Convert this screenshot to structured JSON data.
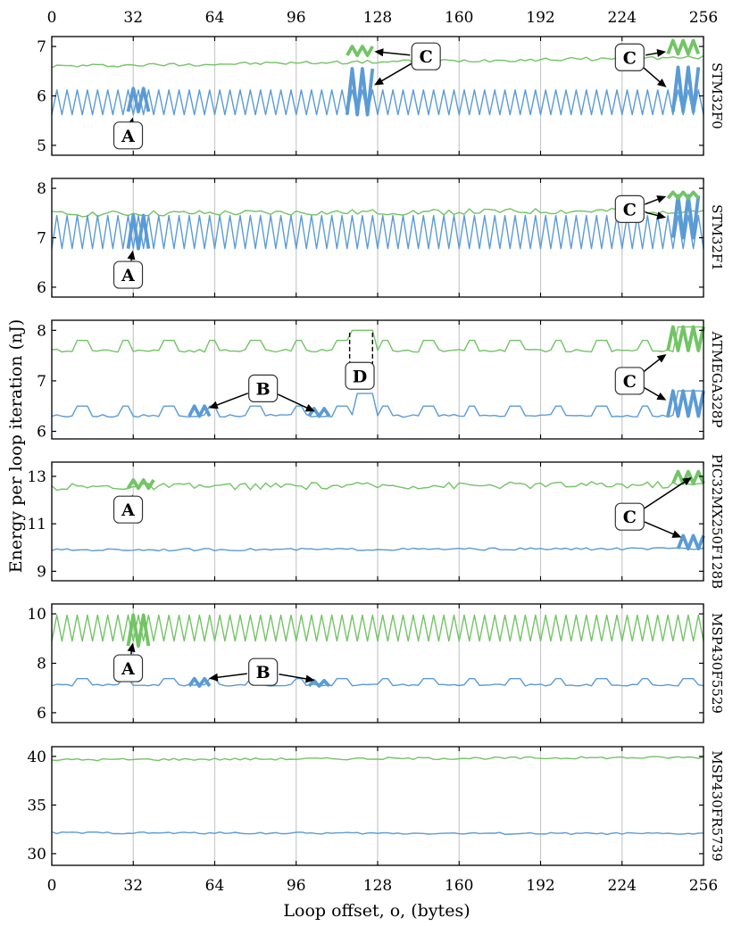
{
  "chart_data": {
    "type": "line",
    "xlabel": "Loop offset, o, (bytes)",
    "ylabel": "Energy per loop iteration (nJ)",
    "xlim": [
      0,
      256
    ],
    "x_ticks": [
      "0",
      "32",
      "64",
      "96",
      "128",
      "160",
      "192",
      "224",
      "256"
    ],
    "grid": "vertical",
    "series_colors": {
      "green": "#72c464",
      "blue": "#5b9bd5"
    },
    "panels": [
      {
        "name": "STM32F0",
        "ylim": [
          4.8,
          7.2
        ],
        "yticks": [
          5,
          6,
          7
        ],
        "green": {
          "kind": "jitter",
          "base_start": 6.6,
          "base_end": 6.78,
          "amp": 0.035
        },
        "blue": {
          "kind": "zigzag",
          "low": 5.62,
          "high": 6.12
        },
        "highlights": [
          {
            "series": "blue",
            "x_from": 30,
            "x_to": 39,
            "low": 5.68,
            "high": 6.15
          },
          {
            "series": "blue",
            "x_from": 116,
            "x_to": 126,
            "low": 5.62,
            "high": 6.55
          },
          {
            "series": "green",
            "x_from": 116,
            "x_to": 126,
            "low": 6.82,
            "high": 7.0
          },
          {
            "series": "blue",
            "x_from": 244,
            "x_to": 255,
            "low": 5.68,
            "high": 6.58
          },
          {
            "series": "green",
            "x_from": 242,
            "x_to": 255,
            "low": 6.85,
            "high": 7.12
          }
        ],
        "annotations": [
          {
            "label": "A",
            "x": 30,
            "y": 5.2,
            "points": [
              [
                32,
                5.6
              ]
            ]
          },
          {
            "label": "C",
            "x": 147,
            "y": 6.8,
            "points": [
              [
                126,
                6.9
              ],
              [
                126,
                6.2
              ]
            ]
          },
          {
            "label": "C",
            "x": 227,
            "y": 6.78,
            "points": [
              [
                242,
                6.9
              ],
              [
                242,
                6.15
              ]
            ]
          }
        ]
      },
      {
        "name": "STM32F1",
        "ylim": [
          5.8,
          8.2
        ],
        "yticks": [
          6,
          7,
          8
        ],
        "green": {
          "kind": "jitter",
          "base_start": 7.48,
          "base_end": 7.55,
          "amp": 0.06
        },
        "blue": {
          "kind": "zigzag",
          "low": 6.78,
          "high": 7.45
        },
        "highlights": [
          {
            "series": "blue",
            "x_from": 30,
            "x_to": 39,
            "low": 6.78,
            "high": 7.45
          },
          {
            "series": "blue",
            "x_from": 244,
            "x_to": 255,
            "low": 7.0,
            "high": 7.85
          },
          {
            "series": "green",
            "x_from": 242,
            "x_to": 255,
            "low": 7.8,
            "high": 7.92
          }
        ],
        "annotations": [
          {
            "label": "A",
            "x": 30,
            "y": 6.25,
            "points": [
              [
                32,
                6.78
              ]
            ]
          },
          {
            "label": "C",
            "x": 227,
            "y": 7.58,
            "points": [
              [
                242,
                7.85
              ],
              [
                242,
                7.4
              ]
            ]
          }
        ]
      },
      {
        "name": "ATMEGA328P",
        "ylim": [
          5.85,
          8.2
        ],
        "yticks": [
          6,
          7,
          8
        ],
        "green": {
          "kind": "bumps",
          "low": 7.57,
          "high": 7.8,
          "period": 17
        },
        "blue": {
          "kind": "bumps",
          "low": 6.28,
          "high": 6.5,
          "period": 17
        },
        "plateaus": [
          {
            "series": "green",
            "x_from": 117,
            "x_to": 126,
            "value": 8.0
          },
          {
            "series": "blue",
            "x_from": 119,
            "x_to": 126,
            "value": 6.75
          },
          {
            "series": "green",
            "x_from": 245,
            "x_to": 256,
            "value": 8.07
          },
          {
            "series": "blue",
            "x_from": 246,
            "x_to": 256,
            "value": 6.8
          }
        ],
        "highlights": [
          {
            "series": "blue",
            "x_from": 54,
            "x_to": 63,
            "low": 6.3,
            "high": 6.5
          },
          {
            "series": "blue",
            "x_from": 101,
            "x_to": 110,
            "low": 6.3,
            "high": 6.45
          },
          {
            "series": "green",
            "x_from": 242,
            "x_to": 256,
            "low": 7.6,
            "high": 8.07
          },
          {
            "series": "blue",
            "x_from": 242,
            "x_to": 256,
            "low": 6.3,
            "high": 6.8
          }
        ],
        "annotations": [
          {
            "label": "B",
            "x": 83,
            "y": 6.85,
            "points": [
              [
                61,
                6.45
              ],
              [
                104,
                6.38
              ]
            ]
          },
          {
            "label": "C",
            "x": 227,
            "y": 7.0,
            "points": [
              [
                242,
                7.55
              ],
              [
                242,
                6.6
              ]
            ]
          },
          {
            "label": "D",
            "x": 121,
            "y": 7.1,
            "points": []
          }
        ],
        "bracket": {
          "x_from": 117,
          "x_to": 126,
          "y_top": 8.0,
          "y_bottom": 7.3
        }
      },
      {
        "name": "PIC32MX250F128B",
        "ylim": [
          8.6,
          13.6
        ],
        "yticks": [
          9,
          11,
          13
        ],
        "green": {
          "kind": "jitter",
          "base_start": 12.55,
          "base_end": 12.65,
          "amp": 0.15
        },
        "blue": {
          "kind": "jitter",
          "base_start": 9.9,
          "base_end": 9.95,
          "amp": 0.05
        },
        "highlights": [
          {
            "series": "green",
            "x_from": 30,
            "x_to": 40,
            "low": 12.5,
            "high": 12.85
          },
          {
            "series": "green",
            "x_from": 244,
            "x_to": 256,
            "low": 12.7,
            "high": 13.2
          },
          {
            "series": "blue",
            "x_from": 246,
            "x_to": 256,
            "low": 9.95,
            "high": 10.5
          }
        ],
        "annotations": [
          {
            "label": "A",
            "x": 30,
            "y": 11.6,
            "points": [
              [
                32,
                12.3
              ]
            ]
          },
          {
            "label": "C",
            "x": 227,
            "y": 11.3,
            "points": [
              [
                252,
                13.0
              ],
              [
                248,
                10.4
              ]
            ]
          }
        ]
      },
      {
        "name": "MSP430F5529",
        "ylim": [
          5.6,
          10.4
        ],
        "yticks": [
          6,
          8,
          10
        ],
        "green": {
          "kind": "zigzag",
          "low": 8.9,
          "high": 9.95
        },
        "blue": {
          "kind": "bumps",
          "low": 7.08,
          "high": 7.38,
          "period": 17
        },
        "highlights": [
          {
            "series": "green",
            "x_from": 30,
            "x_to": 39,
            "low": 8.7,
            "high": 9.95
          },
          {
            "series": "blue",
            "x_from": 54,
            "x_to": 63,
            "low": 7.08,
            "high": 7.38
          },
          {
            "series": "blue",
            "x_from": 101,
            "x_to": 110,
            "low": 7.08,
            "high": 7.3
          }
        ],
        "annotations": [
          {
            "label": "A",
            "x": 30,
            "y": 7.8,
            "points": [
              [
                32,
                8.9
              ]
            ]
          },
          {
            "label": "B",
            "x": 83,
            "y": 7.65,
            "points": [
              [
                61,
                7.38
              ],
              [
                104,
                7.3
              ]
            ]
          }
        ]
      },
      {
        "name": "MSP430FR5739",
        "ylim": [
          28.8,
          41.0
        ],
        "yticks": [
          30,
          35,
          40
        ],
        "green": {
          "kind": "jitter",
          "base_start": 39.65,
          "base_end": 39.9,
          "amp": 0.12
        },
        "blue": {
          "kind": "jitter",
          "base_start": 32.15,
          "base_end": 32.05,
          "amp": 0.1
        },
        "highlights": [],
        "annotations": []
      }
    ]
  }
}
